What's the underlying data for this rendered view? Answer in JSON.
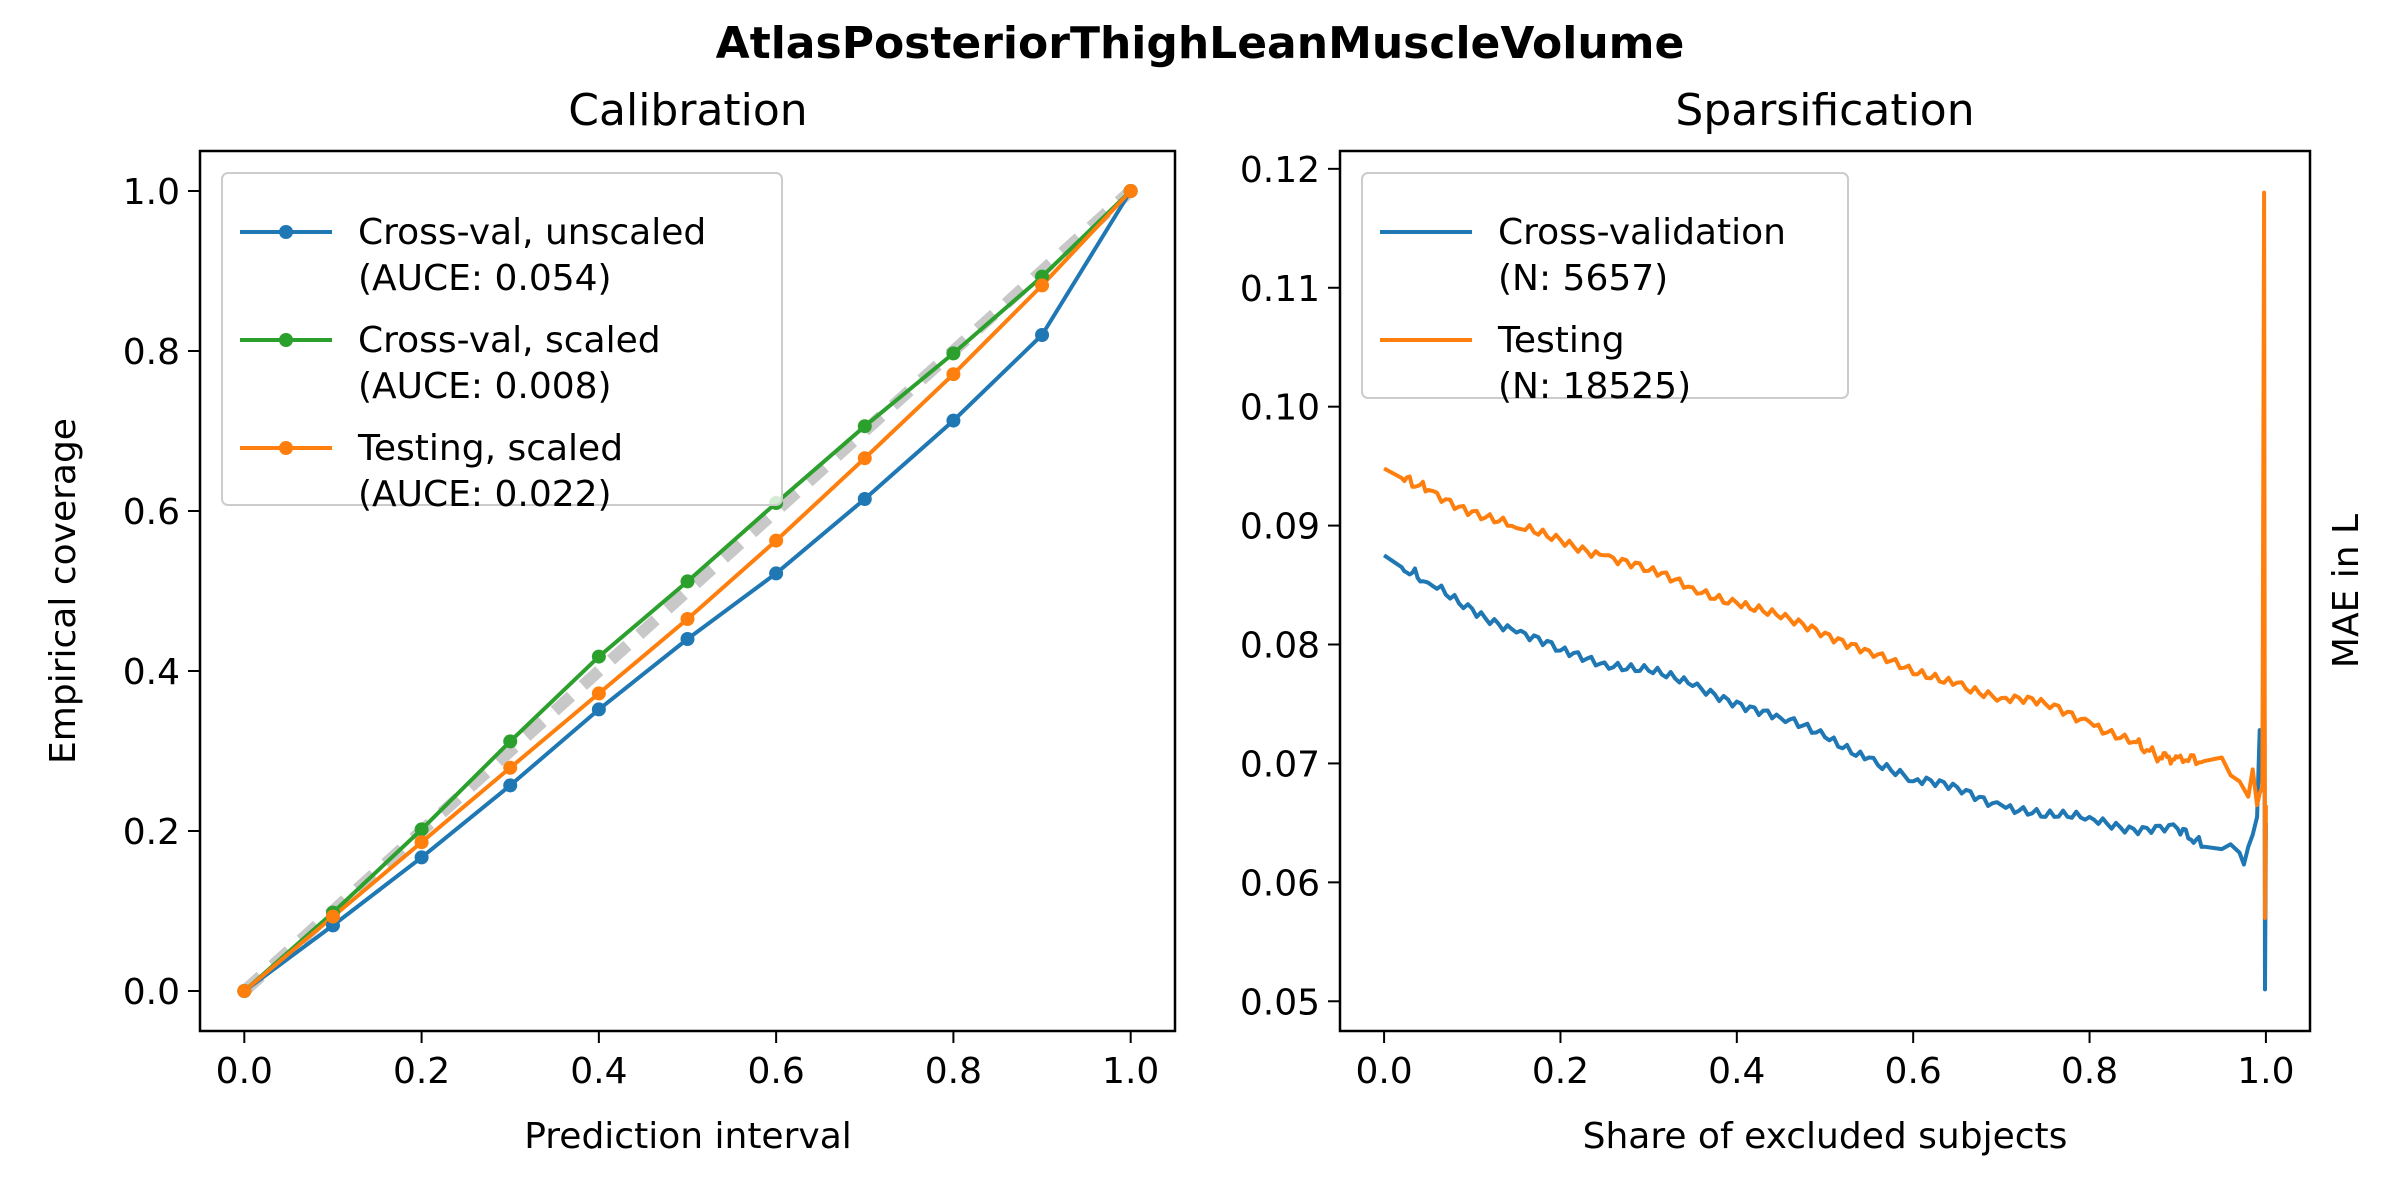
{
  "figure": {
    "suptitle": "AtlasPosteriorThighLeanMuscleVolume"
  },
  "chart_data": [
    {
      "type": "line",
      "title": "Calibration",
      "xlabel": "Prediction interval",
      "ylabel": "Empirical coverage",
      "xlim": [
        -0.05,
        1.05
      ],
      "ylim": [
        -0.05,
        1.05
      ],
      "xticks": [
        "0.0",
        "0.2",
        "0.4",
        "0.6",
        "0.8",
        "1.0"
      ],
      "yticks": [
        "0.0",
        "0.2",
        "0.4",
        "0.6",
        "0.8",
        "1.0"
      ],
      "grid": false,
      "legend_position": "top-left",
      "reference_line": {
        "x": [
          0,
          1
        ],
        "y": [
          0,
          1
        ],
        "color": "#c8c8c8",
        "style": "dashed"
      },
      "x": [
        0.0,
        0.1,
        0.2,
        0.3,
        0.4,
        0.5,
        0.6,
        0.7,
        0.8,
        0.9,
        1.0
      ],
      "series": [
        {
          "name": "Cross-val, unscaled",
          "name2": "(AUCE: 0.054)",
          "color": "#1f77b4",
          "values": [
            0.0,
            0.082,
            0.167,
            0.257,
            0.352,
            0.44,
            0.522,
            0.615,
            0.713,
            0.82,
            1.0
          ]
        },
        {
          "name": "Cross-val, scaled",
          "name2": "(AUCE: 0.008)",
          "color": "#2ca02c",
          "values": [
            0.0,
            0.098,
            0.202,
            0.312,
            0.418,
            0.512,
            0.61,
            0.706,
            0.797,
            0.893,
            1.0
          ]
        },
        {
          "name": "Testing, scaled",
          "name2": "(AUCE: 0.022)",
          "color": "#ff7f0e",
          "values": [
            0.0,
            0.093,
            0.186,
            0.279,
            0.372,
            0.465,
            0.563,
            0.666,
            0.771,
            0.882,
            1.0
          ]
        }
      ]
    },
    {
      "type": "line",
      "title": "Sparsification",
      "xlabel": "Share of excluded subjects",
      "ylabel": "MAE in L",
      "xlim": [
        -0.05,
        1.05
      ],
      "ylim": [
        0.0475,
        0.1215
      ],
      "xticks": [
        "0.0",
        "0.2",
        "0.4",
        "0.6",
        "0.8",
        "1.0"
      ],
      "yticks": [
        "0.05",
        "0.06",
        "0.07",
        "0.08",
        "0.09",
        "0.10",
        "0.11",
        "0.12"
      ],
      "grid": false,
      "legend_position": "top-left",
      "series": [
        {
          "name": "Cross-validation",
          "name2": "(N: 5657)",
          "color": "#1f77b4",
          "x": [
            0.0,
            0.02,
            0.05,
            0.1,
            0.15,
            0.2,
            0.25,
            0.3,
            0.35,
            0.4,
            0.45,
            0.5,
            0.55,
            0.6,
            0.65,
            0.7,
            0.75,
            0.8,
            0.85,
            0.9,
            0.93,
            0.95,
            0.96,
            0.97,
            0.975,
            0.98,
            0.985,
            0.99,
            0.993,
            0.996,
            0.998,
            0.999,
            1.0
          ],
          "y": [
            0.0875,
            0.0865,
            0.0852,
            0.083,
            0.081,
            0.0795,
            0.0785,
            0.0778,
            0.0765,
            0.0752,
            0.0738,
            0.0722,
            0.0705,
            0.0685,
            0.068,
            0.0665,
            0.0655,
            0.0655,
            0.0645,
            0.0645,
            0.063,
            0.0628,
            0.0632,
            0.0625,
            0.0615,
            0.063,
            0.064,
            0.0655,
            0.0728,
            0.068,
            0.0955,
            0.051,
            0.065
          ]
        },
        {
          "name": "Testing",
          "name2": "(N: 18525)",
          "color": "#ff7f0e",
          "x": [
            0.0,
            0.02,
            0.05,
            0.1,
            0.15,
            0.2,
            0.25,
            0.3,
            0.35,
            0.4,
            0.45,
            0.5,
            0.55,
            0.6,
            0.65,
            0.7,
            0.75,
            0.8,
            0.85,
            0.88,
            0.9,
            0.93,
            0.95,
            0.96,
            0.97,
            0.98,
            0.985,
            0.99,
            0.993,
            0.996,
            0.998,
            0.999,
            1.0
          ],
          "y": [
            0.0948,
            0.094,
            0.093,
            0.0912,
            0.0898,
            0.0888,
            0.0875,
            0.0862,
            0.0848,
            0.0835,
            0.0822,
            0.081,
            0.0795,
            0.0775,
            0.0768,
            0.0755,
            0.075,
            0.0735,
            0.0718,
            0.0705,
            0.0705,
            0.0702,
            0.0705,
            0.069,
            0.0685,
            0.0672,
            0.0695,
            0.0665,
            0.0675,
            0.068,
            0.118,
            0.057,
            0.0665
          ]
        }
      ]
    }
  ]
}
